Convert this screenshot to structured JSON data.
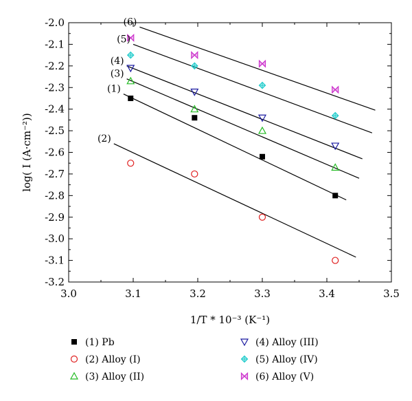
{
  "chart_data": {
    "type": "scatter",
    "xlabel": "1/T * 10⁻³ (K⁻¹)",
    "ylabel": "log( I (A·cm⁻²))",
    "xlim": [
      3.0,
      3.5
    ],
    "ylim": [
      -3.2,
      -2.0
    ],
    "xticks": [
      "3.0",
      "3.1",
      "3.2",
      "3.3",
      "3.4",
      "3.5"
    ],
    "yticks": [
      "-2.0",
      "-2.1",
      "-2.2",
      "-2.3",
      "-2.4",
      "-2.5",
      "-2.6",
      "-2.7",
      "-2.8",
      "-2.9",
      "-3.0",
      "-3.1",
      "-3.2"
    ],
    "grid": false,
    "legend_position": "bottom",
    "series": [
      {
        "name": "(1) Pb",
        "label": "(1)",
        "marker": "filled-square",
        "color": "#000000",
        "x": [
          3.096,
          3.195,
          3.3,
          3.413
        ],
        "y": [
          -2.35,
          -2.44,
          -2.62,
          -2.8
        ],
        "fit": {
          "x": [
            3.085,
            3.43
          ],
          "y": [
            -2.33,
            -2.82
          ]
        }
      },
      {
        "name": "(2) Alloy (I)",
        "label": "(2)",
        "marker": "open-circle",
        "color": "#e02020",
        "x": [
          3.096,
          3.195,
          3.3,
          3.413
        ],
        "y": [
          -2.65,
          -2.7,
          -2.9,
          -3.1
        ],
        "fit": {
          "x": [
            3.07,
            3.445
          ],
          "y": [
            -2.56,
            -3.085
          ]
        }
      },
      {
        "name": "(3) Alloy (II)",
        "label": "(3)",
        "marker": "open-triangle-up",
        "color": "#22bb22",
        "x": [
          3.096,
          3.195,
          3.3,
          3.413
        ],
        "y": [
          -2.27,
          -2.4,
          -2.5,
          -2.67
        ],
        "fit": {
          "x": [
            3.09,
            3.45
          ],
          "y": [
            -2.26,
            -2.72
          ]
        }
      },
      {
        "name": "(4) Alloy (III)",
        "label": "(4)",
        "marker": "open-triangle-down",
        "color": "#1a1aa0",
        "x": [
          3.096,
          3.195,
          3.3,
          3.413
        ],
        "y": [
          -2.21,
          -2.32,
          -2.44,
          -2.57
        ],
        "fit": {
          "x": [
            3.09,
            3.455
          ],
          "y": [
            -2.2,
            -2.63
          ]
        }
      },
      {
        "name": "(5) Alloy (IV)",
        "label": "(5)",
        "marker": "crossed-diamond",
        "color": "#22cccc",
        "x": [
          3.096,
          3.195,
          3.3,
          3.413
        ],
        "y": [
          -2.15,
          -2.2,
          -2.29,
          -2.43
        ],
        "fit": {
          "x": [
            3.1,
            3.47
          ],
          "y": [
            -2.1,
            -2.51
          ]
        }
      },
      {
        "name": "(6) Alloy (V)",
        "label": "(6)",
        "marker": "bowtie-x",
        "color": "#cc33cc",
        "x": [
          3.096,
          3.195,
          3.3,
          3.413
        ],
        "y": [
          -2.07,
          -2.15,
          -2.19,
          -2.31
        ],
        "fit": {
          "x": [
            3.11,
            3.475
          ],
          "y": [
            -2.02,
            -2.405
          ]
        }
      }
    ]
  }
}
